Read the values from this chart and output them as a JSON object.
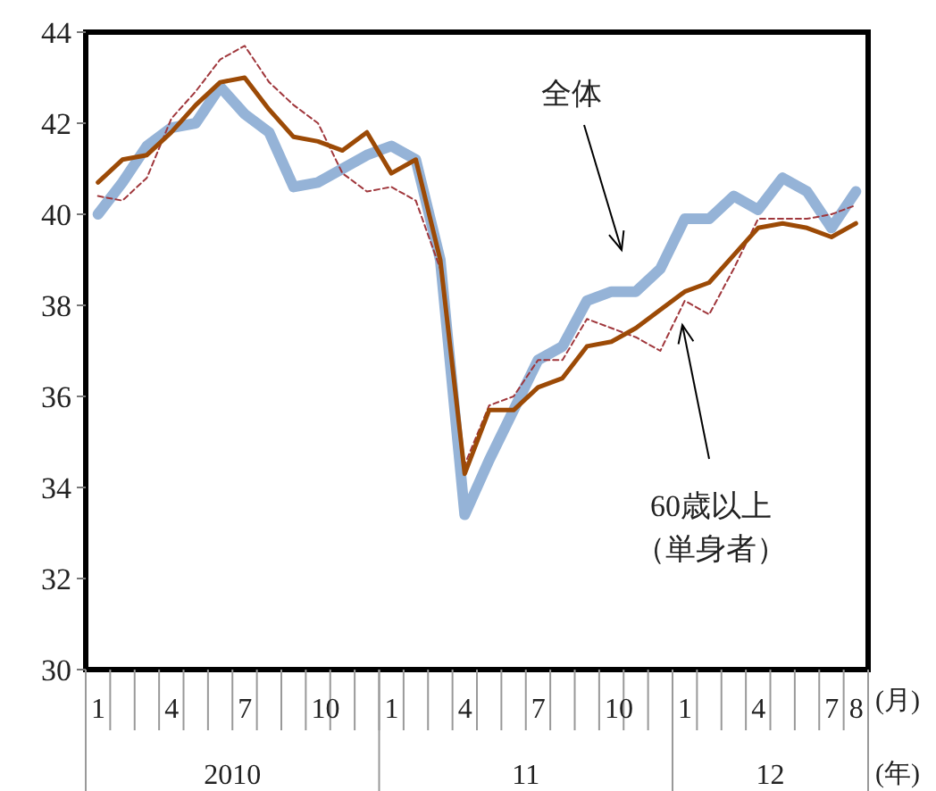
{
  "chart_data": {
    "type": "line",
    "categories": [
      "1",
      null,
      null,
      "4",
      null,
      null,
      "7",
      null,
      null,
      "10",
      null,
      null,
      "1",
      null,
      null,
      "4",
      null,
      null,
      "7",
      null,
      null,
      "10",
      null,
      null,
      "1",
      null,
      null,
      "4",
      null,
      null,
      "7",
      "8"
    ],
    "series": [
      {
        "color": "#95b3d7",
        "values": [
          40.0,
          40.7,
          41.5,
          41.9,
          42.0,
          42.8,
          42.2,
          41.8,
          40.6,
          40.7,
          41.0,
          41.3,
          41.5,
          41.2,
          39.0,
          33.4,
          34.6,
          35.7,
          36.8,
          37.1,
          38.1,
          38.3,
          38.3,
          38.8,
          39.9,
          39.9,
          40.4,
          40.1,
          40.8,
          40.5,
          39.7,
          40.5
        ]
      },
      {
        "color": "#9c4a06",
        "values": [
          40.7,
          41.2,
          41.3,
          41.8,
          42.4,
          42.9,
          43.0,
          42.3,
          41.7,
          41.6,
          41.4,
          41.8,
          40.9,
          41.2,
          39.0,
          34.3,
          35.7,
          35.7,
          36.2,
          36.4,
          37.1,
          37.2,
          37.5,
          37.9,
          38.3,
          38.5,
          39.1,
          39.7,
          39.8,
          39.7,
          39.5,
          39.8
        ]
      },
      {
        "color": "#a0373c",
        "line_style": "dashed",
        "values": [
          40.4,
          40.3,
          40.8,
          42.1,
          42.7,
          43.4,
          43.7,
          42.9,
          42.4,
          42.0,
          40.9,
          40.5,
          40.6,
          40.3,
          38.8,
          34.5,
          35.8,
          36.0,
          36.8,
          36.8,
          37.7,
          37.5,
          37.3,
          37.0,
          38.1,
          37.8,
          38.8,
          39.9,
          39.9,
          39.9,
          40.0,
          40.2
        ]
      }
    ],
    "ylim": [
      30,
      44
    ],
    "yticks": [
      30,
      32,
      34,
      36,
      38,
      40,
      42,
      44
    ],
    "grid": false,
    "annotations": [
      "(月)",
      "2010",
      "11",
      "12",
      "(年)",
      "全体",
      "60歳以上",
      "（単身者）"
    ]
  }
}
